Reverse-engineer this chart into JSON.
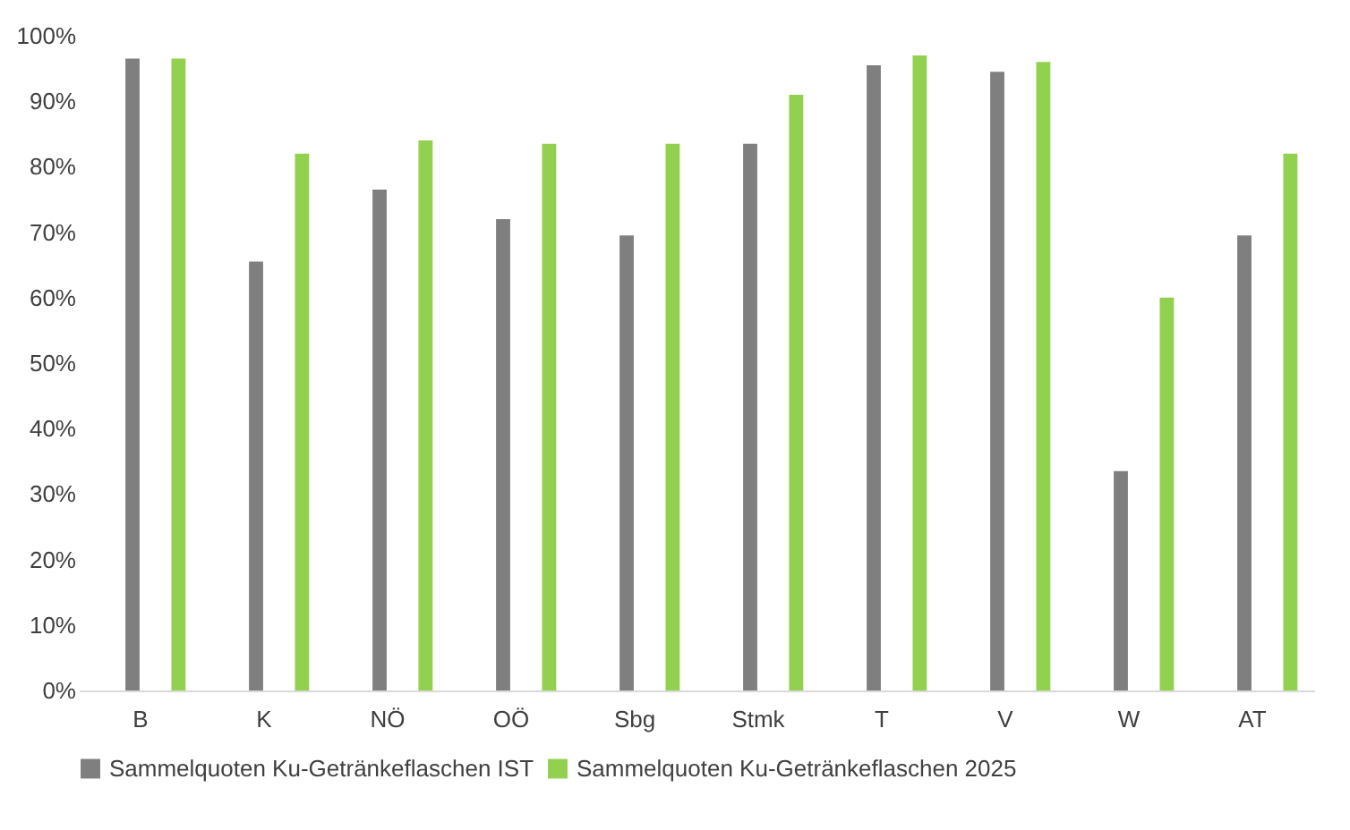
{
  "chart_data": {
    "type": "bar",
    "categories": [
      "B",
      "K",
      "NÖ",
      "OÖ",
      "Sbg",
      "Stmk",
      "T",
      "V",
      "W",
      "AT"
    ],
    "series": [
      {
        "name": "Sammelquoten Ku-Getränkeflaschen IST",
        "color": "#7f7f7f",
        "values": [
          96.5,
          65.5,
          76.5,
          72,
          69.5,
          83.5,
          95.5,
          94.5,
          33.5,
          69.5
        ]
      },
      {
        "name": "Sammelquoten Ku-Getränkeflaschen 2025",
        "color": "#92d050",
        "values": [
          96.5,
          82,
          84,
          83.5,
          83.5,
          91,
          97,
          96,
          60,
          82
        ]
      }
    ],
    "ylim": [
      0,
      100
    ],
    "yticks": [
      {
        "value": 0,
        "label": "0%"
      },
      {
        "value": 10,
        "label": "10%"
      },
      {
        "value": 20,
        "label": "20%"
      },
      {
        "value": 30,
        "label": "30%"
      },
      {
        "value": 40,
        "label": "40%"
      },
      {
        "value": 50,
        "label": "50%"
      },
      {
        "value": 60,
        "label": "60%"
      },
      {
        "value": 70,
        "label": "70%"
      },
      {
        "value": 80,
        "label": "80%"
      },
      {
        "value": 90,
        "label": "90%"
      },
      {
        "value": 100,
        "label": "100%"
      }
    ],
    "grid": false,
    "legend": "bottom"
  }
}
